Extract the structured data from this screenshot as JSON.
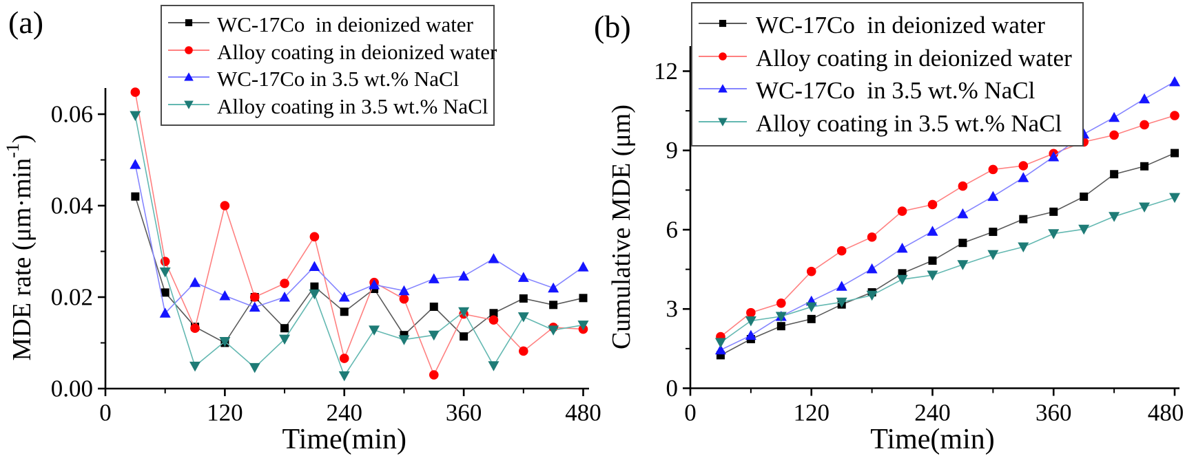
{
  "figure": {
    "panel_a_label": "(a)",
    "panel_b_label": "(b)",
    "charts": [
      {
        "id": "a",
        "type": "line",
        "xlabel": "Time(min)",
        "ylabel": "MDE rate (μm·min⁻¹)",
        "xlim": [
          0,
          486
        ],
        "ylim": [
          0,
          0.0657
        ],
        "xticks": [
          {
            "v": 0,
            "label": "0"
          },
          {
            "v": 120,
            "label": "120"
          },
          {
            "v": 240,
            "label": "240"
          },
          {
            "v": 360,
            "label": "360"
          },
          {
            "v": 480,
            "label": "480"
          }
        ],
        "xminor": [
          60,
          180,
          300,
          420
        ],
        "yticks": [
          {
            "v": 0,
            "label": "0.00"
          },
          {
            "v": 0.02,
            "label": "0.02"
          },
          {
            "v": 0.04,
            "label": "0.04"
          },
          {
            "v": 0.06,
            "label": "0.06"
          }
        ],
        "yminor": [
          0.01,
          0.03,
          0.05
        ],
        "x": [
          30,
          60,
          90,
          120,
          150,
          180,
          210,
          240,
          270,
          300,
          330,
          360,
          390,
          420,
          450,
          480
        ],
        "series": [
          {
            "name": "WC-17Co  in deionized water",
            "marker": "square",
            "color": "#000000",
            "line_color": "#595959",
            "values": [
              0.042,
              0.021,
              0.0135,
              0.01,
              0.02,
              0.0132,
              0.0223,
              0.0168,
              0.0218,
              0.0117,
              0.0179,
              0.0114,
              0.0165,
              0.0197,
              0.0183,
              0.0198
            ]
          },
          {
            "name": "Alloy coating in deionized water",
            "marker": "circle",
            "color": "#ff0000",
            "line_color": "#ff8080",
            "values": [
              0.0648,
              0.0278,
              0.0132,
              0.04,
              0.02,
              0.023,
              0.0332,
              0.0066,
              0.0232,
              0.0196,
              0.003,
              0.0163,
              0.015,
              0.0082,
              0.0134,
              0.013
            ]
          },
          {
            "name": "WC-17Co in 3.5 wt.% NaCl",
            "marker": "triangle-up",
            "color": "#1515ff",
            "line_color": "#8585ff",
            "values": [
              0.049,
              0.0165,
              0.0232,
              0.0203,
              0.0178,
              0.02,
              0.0267,
              0.02,
              0.0227,
              0.0214,
              0.024,
              0.0246,
              0.0284,
              0.0243,
              0.022,
              0.0266
            ]
          },
          {
            "name": "Alloy coating in 3.5 wt.% NaCl",
            "marker": "triangle-down",
            "color": "#1e7b76",
            "line_color": "#63b8b1",
            "values": [
              0.0597,
              0.0255,
              0.0049,
              0.0103,
              0.0046,
              0.0108,
              0.0207,
              0.0028,
              0.0128,
              0.0107,
              0.0117,
              0.0168,
              0.005,
              0.0157,
              0.0128,
              0.0139
            ]
          }
        ]
      },
      {
        "id": "b",
        "type": "line",
        "xlabel": "Time(min)",
        "ylabel": "Cumulative MDE (μm)",
        "xlim": [
          0,
          485
        ],
        "ylim": [
          0,
          13
        ],
        "xticks": [
          {
            "v": 0,
            "label": "0"
          },
          {
            "v": 120,
            "label": "120"
          },
          {
            "v": 240,
            "label": "240"
          },
          {
            "v": 360,
            "label": "360"
          },
          {
            "v": 480,
            "label": "480"
          }
        ],
        "xminor": [
          60,
          180,
          300,
          420
        ],
        "yticks": [
          {
            "v": 0,
            "label": "0"
          },
          {
            "v": 3,
            "label": "3"
          },
          {
            "v": 6,
            "label": "6"
          },
          {
            "v": 9,
            "label": "9"
          },
          {
            "v": 12,
            "label": "12"
          }
        ],
        "yminor": [
          1.5,
          4.5,
          7.5,
          10.5
        ],
        "x": [
          30,
          60,
          90,
          120,
          150,
          180,
          210,
          240,
          270,
          300,
          330,
          360,
          390,
          420,
          450,
          480
        ],
        "series": [
          {
            "name": "WC-17Co  in deionized water",
            "marker": "square",
            "color": "#000000",
            "line_color": "#595959",
            "values": [
              1.25,
              1.86,
              2.35,
              2.62,
              3.17,
              3.63,
              4.35,
              4.83,
              5.5,
              5.92,
              6.4,
              6.68,
              7.25,
              8.1,
              8.4,
              8.9
            ]
          },
          {
            "name": "Alloy coating in deionized water",
            "marker": "circle",
            "color": "#ff0000",
            "line_color": "#ff8080",
            "values": [
              1.95,
              2.86,
              3.22,
              4.42,
              5.2,
              5.72,
              6.7,
              6.95,
              7.65,
              8.28,
              8.42,
              8.88,
              9.32,
              9.58,
              9.97,
              10.32
            ]
          },
          {
            "name": "WC-17Co  in 3.5 wt.% NaCl",
            "marker": "triangle-up",
            "color": "#1515ff",
            "line_color": "#8585ff",
            "values": [
              1.45,
              2.0,
              2.72,
              3.3,
              3.86,
              4.52,
              5.3,
              5.94,
              6.6,
              7.26,
              7.97,
              8.76,
              9.62,
              10.25,
              10.95,
              11.6
            ]
          },
          {
            "name": "Alloy coating in 3.5 wt.% NaCl",
            "marker": "triangle-down",
            "color": "#1e7b76",
            "line_color": "#63b8b1",
            "values": [
              1.73,
              2.55,
              2.72,
              3.08,
              3.26,
              3.52,
              4.12,
              4.28,
              4.68,
              5.06,
              5.35,
              5.85,
              6.02,
              6.5,
              6.86,
              7.22
            ]
          }
        ]
      }
    ]
  }
}
